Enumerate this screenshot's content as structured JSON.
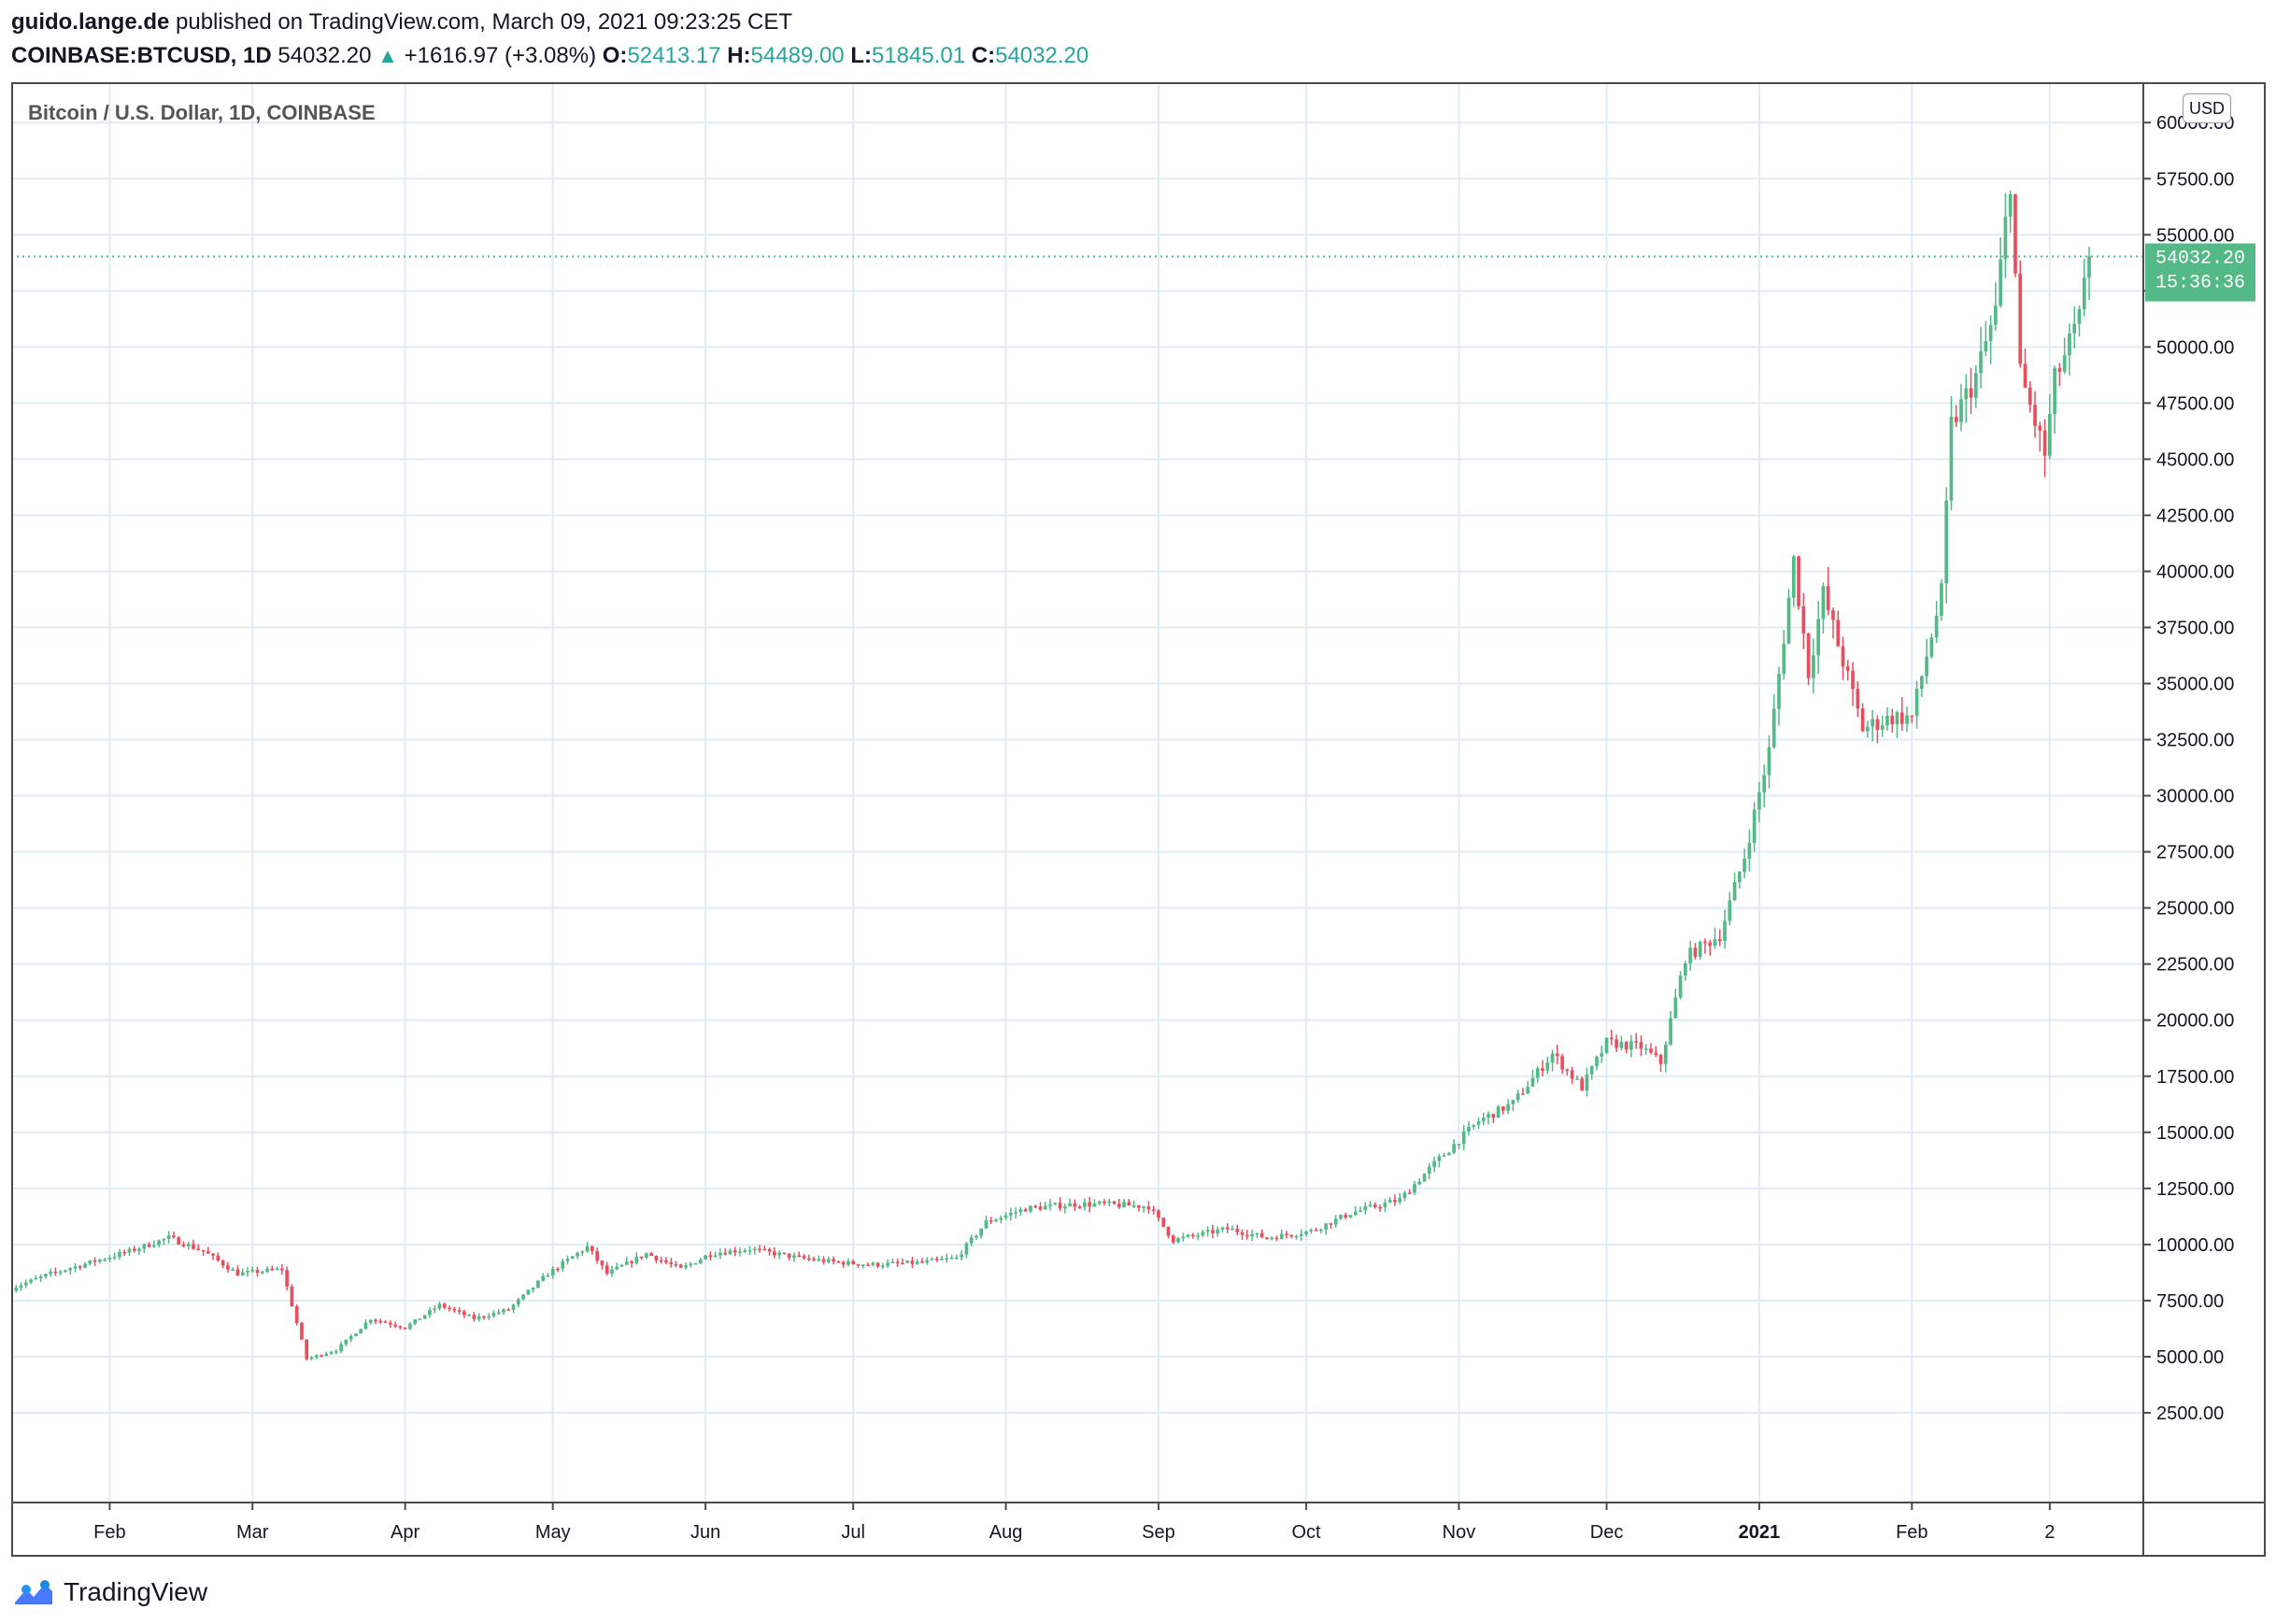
{
  "header": {
    "author": "guido.lange.de",
    "published_text": "published on TradingView.com, March 09, 2021 09:23:25 CET",
    "symbol": "COINBASE:BTCUSD, 1D",
    "last": "54032.20",
    "change": "+1616.97 (+3.08%)",
    "o_label": "O:",
    "o_value": "52413.17",
    "h_label": "H:",
    "h_value": "54489.00",
    "l_label": "L:",
    "l_value": "51845.01",
    "c_label": "C:",
    "c_value": "54032.20"
  },
  "currency_badge": "USD",
  "price_tag": {
    "price": "54032.20",
    "countdown": "15:36:36"
  },
  "footer": {
    "brand": "TradingView",
    "icon": "tradingview-logo-icon"
  },
  "colors": {
    "up": "#26a69a",
    "down": "#ef5350",
    "candle_up": "#53b987",
    "candle_down": "#eb4d5c",
    "grid": "#e0ecf1",
    "price_tag_bg": "#53b987"
  },
  "chart_data": {
    "type": "candlestick",
    "title": "Bitcoin / U.S. Dollar, 1D, COINBASE",
    "x_labels": [
      {
        "label": "Feb",
        "date": "2020-02-01"
      },
      {
        "label": "Mar",
        "date": "2020-03-01"
      },
      {
        "label": "Apr",
        "date": "2020-04-01"
      },
      {
        "label": "May",
        "date": "2020-05-01"
      },
      {
        "label": "Jun",
        "date": "2020-06-01"
      },
      {
        "label": "Jul",
        "date": "2020-07-01"
      },
      {
        "label": "Aug",
        "date": "2020-08-01"
      },
      {
        "label": "Sep",
        "date": "2020-09-01"
      },
      {
        "label": "Oct",
        "date": "2020-10-01"
      },
      {
        "label": "Nov",
        "date": "2020-11-01"
      },
      {
        "label": "Dec",
        "date": "2020-12-01"
      },
      {
        "label": "2021",
        "date": "2021-01-01",
        "bold": true
      },
      {
        "label": "Feb",
        "date": "2021-02-01"
      },
      {
        "label": "2",
        "date": "2021-03-01"
      }
    ],
    "y_ticks": [
      2500,
      5000,
      7500,
      10000,
      12500,
      15000,
      17500,
      20000,
      22500,
      25000,
      27500,
      30000,
      32500,
      35000,
      37500,
      40000,
      42500,
      45000,
      47500,
      50000,
      52500,
      55000,
      57500,
      60000
    ],
    "y_tick_labels": [
      "2500.00",
      "5000.00",
      "7500.00",
      "10000.00",
      "12500.00",
      "15000.00",
      "17500.00",
      "20000.00",
      "22500.00",
      "25000.00",
      "27500.00",
      "30000.00",
      "32500.00",
      "35000.00",
      "37500.00",
      "40000.00",
      "42500.00",
      "45000.00",
      "47500.00",
      "50000.00",
      "52500.00",
      "55000.00",
      "57500.00",
      "60000.00"
    ],
    "ylim": [
      -1500,
      61800
    ],
    "xlim": [
      "2020-01-12",
      "2021-03-20"
    ],
    "last_price": 54032.2,
    "grid": true,
    "anchors": [
      [
        "2020-01-12",
        8050
      ],
      [
        "2020-01-20",
        8700
      ],
      [
        "2020-01-28",
        9200
      ],
      [
        "2020-02-05",
        9700
      ],
      [
        "2020-02-13",
        10300
      ],
      [
        "2020-02-20",
        9700
      ],
      [
        "2020-02-27",
        8700
      ],
      [
        "2020-03-07",
        8900
      ],
      [
        "2020-03-12",
        4900
      ],
      [
        "2020-03-18",
        5300
      ],
      [
        "2020-03-25",
        6700
      ],
      [
        "2020-04-01",
        6300
      ],
      [
        "2020-04-08",
        7300
      ],
      [
        "2020-04-15",
        6700
      ],
      [
        "2020-04-22",
        7100
      ],
      [
        "2020-04-30",
        8700
      ],
      [
        "2020-05-08",
        9900
      ],
      [
        "2020-05-12",
        8700
      ],
      [
        "2020-05-20",
        9600
      ],
      [
        "2020-05-27",
        8900
      ],
      [
        "2020-06-02",
        9600
      ],
      [
        "2020-06-10",
        9800
      ],
      [
        "2020-06-20",
        9400
      ],
      [
        "2020-06-28",
        9200
      ],
      [
        "2020-07-05",
        9100
      ],
      [
        "2020-07-15",
        9200
      ],
      [
        "2020-07-22",
        9400
      ],
      [
        "2020-07-28",
        11000
      ],
      [
        "2020-08-05",
        11600
      ],
      [
        "2020-08-15",
        11800
      ],
      [
        "2020-08-20",
        11800
      ],
      [
        "2020-08-30",
        11700
      ],
      [
        "2020-09-04",
        10200
      ],
      [
        "2020-09-15",
        10700
      ],
      [
        "2020-09-23",
        10300
      ],
      [
        "2020-10-02",
        10600
      ],
      [
        "2020-10-10",
        11400
      ],
      [
        "2020-10-20",
        12000
      ],
      [
        "2020-10-27",
        13600
      ],
      [
        "2020-11-05",
        15500
      ],
      [
        "2020-11-12",
        16300
      ],
      [
        "2020-11-20",
        18500
      ],
      [
        "2020-11-26",
        17000
      ],
      [
        "2020-12-01",
        19000
      ],
      [
        "2020-12-08",
        18800
      ],
      [
        "2020-12-12",
        18100
      ],
      [
        "2020-12-17",
        22800
      ],
      [
        "2020-12-24",
        23800
      ],
      [
        "2020-12-29",
        27300
      ],
      [
        "2021-01-03",
        32000
      ],
      [
        "2021-01-08",
        40500
      ],
      [
        "2021-01-11",
        35500
      ],
      [
        "2021-01-14",
        39000
      ],
      [
        "2021-01-22",
        33000
      ],
      [
        "2021-01-28",
        33500
      ],
      [
        "2021-02-01",
        33500
      ],
      [
        "2021-02-07",
        39000
      ],
      [
        "2021-02-09",
        46500
      ],
      [
        "2021-02-14",
        48700
      ],
      [
        "2021-02-18",
        51600
      ],
      [
        "2021-02-21",
        57500
      ],
      [
        "2021-02-23",
        48800
      ],
      [
        "2021-02-28",
        45200
      ],
      [
        "2021-03-02",
        48500
      ],
      [
        "2021-03-07",
        51200
      ],
      [
        "2021-03-09",
        54032
      ]
    ]
  }
}
